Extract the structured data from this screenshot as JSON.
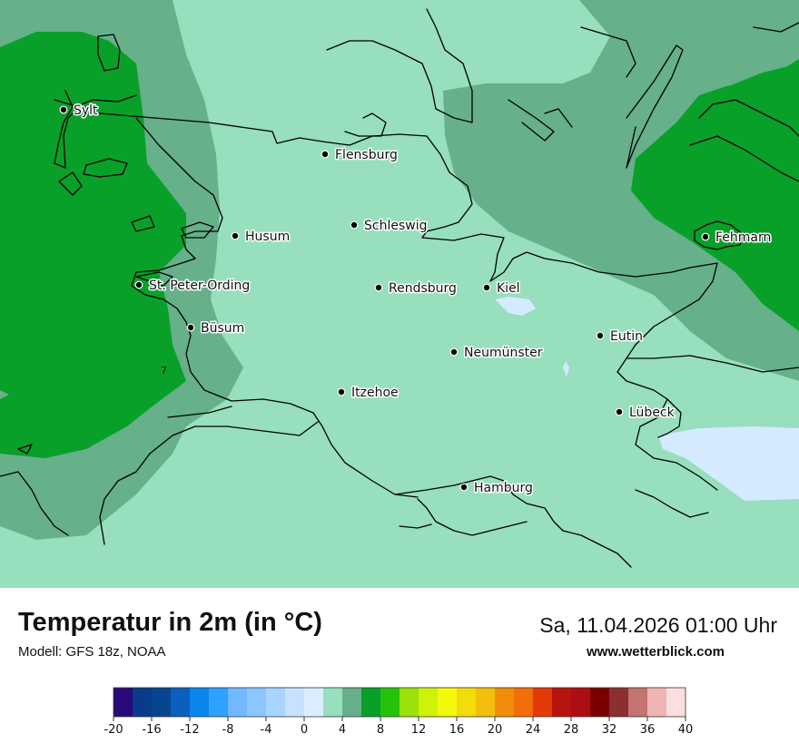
{
  "map": {
    "cities": [
      {
        "name": "Sylt"
      },
      {
        "name": "Flensburg"
      },
      {
        "name": "Schleswig"
      },
      {
        "name": "Husum"
      },
      {
        "name": "St. Peter-Ording"
      },
      {
        "name": "Rendsburg"
      },
      {
        "name": "Kiel"
      },
      {
        "name": "Büsum"
      },
      {
        "name": "Fehmarn"
      },
      {
        "name": "Eutin"
      },
      {
        "name": "Neumünster"
      },
      {
        "name": "Itzehoe"
      },
      {
        "name": "Lübeck"
      },
      {
        "name": "Hamburg"
      }
    ],
    "contour_label": "7",
    "colors": {
      "band_2_4": "#cfe6ff",
      "band_4_6": "#97dfbd",
      "band_6_8": "#66b08a",
      "band_8_10": "#08a029"
    }
  },
  "header": {
    "title": "Temperatur in 2m (in °C)",
    "model": "Modell: GFS 18z, NOAA",
    "datetime": "Sa, 11.04.2026 01:00 Uhr",
    "website": "www.wetterblick.com"
  },
  "legend": {
    "ticks": [
      "-20",
      "-16",
      "-12",
      "-8",
      "-4",
      "0",
      "4",
      "8",
      "12",
      "16",
      "20",
      "24",
      "28",
      "32",
      "36",
      "40"
    ],
    "colors": [
      "#2a0a7a",
      "#0a3a8a",
      "#07458f",
      "#0a5fbf",
      "#0a86ee",
      "#2ea0ff",
      "#72b8ff",
      "#8cc6ff",
      "#a9d4ff",
      "#c6e2ff",
      "#dbeeff",
      "#97dfbd",
      "#66b08a",
      "#08a029",
      "#26c20b",
      "#9ae20a",
      "#cef20a",
      "#f2fa0a",
      "#f2dc0a",
      "#f2c00a",
      "#f28c0a",
      "#f26e0a",
      "#e43a0a",
      "#b8140e",
      "#ac0e14",
      "#7c0000",
      "#8b3030",
      "#c47272",
      "#f0b4b4",
      "#fbdede"
    ]
  }
}
